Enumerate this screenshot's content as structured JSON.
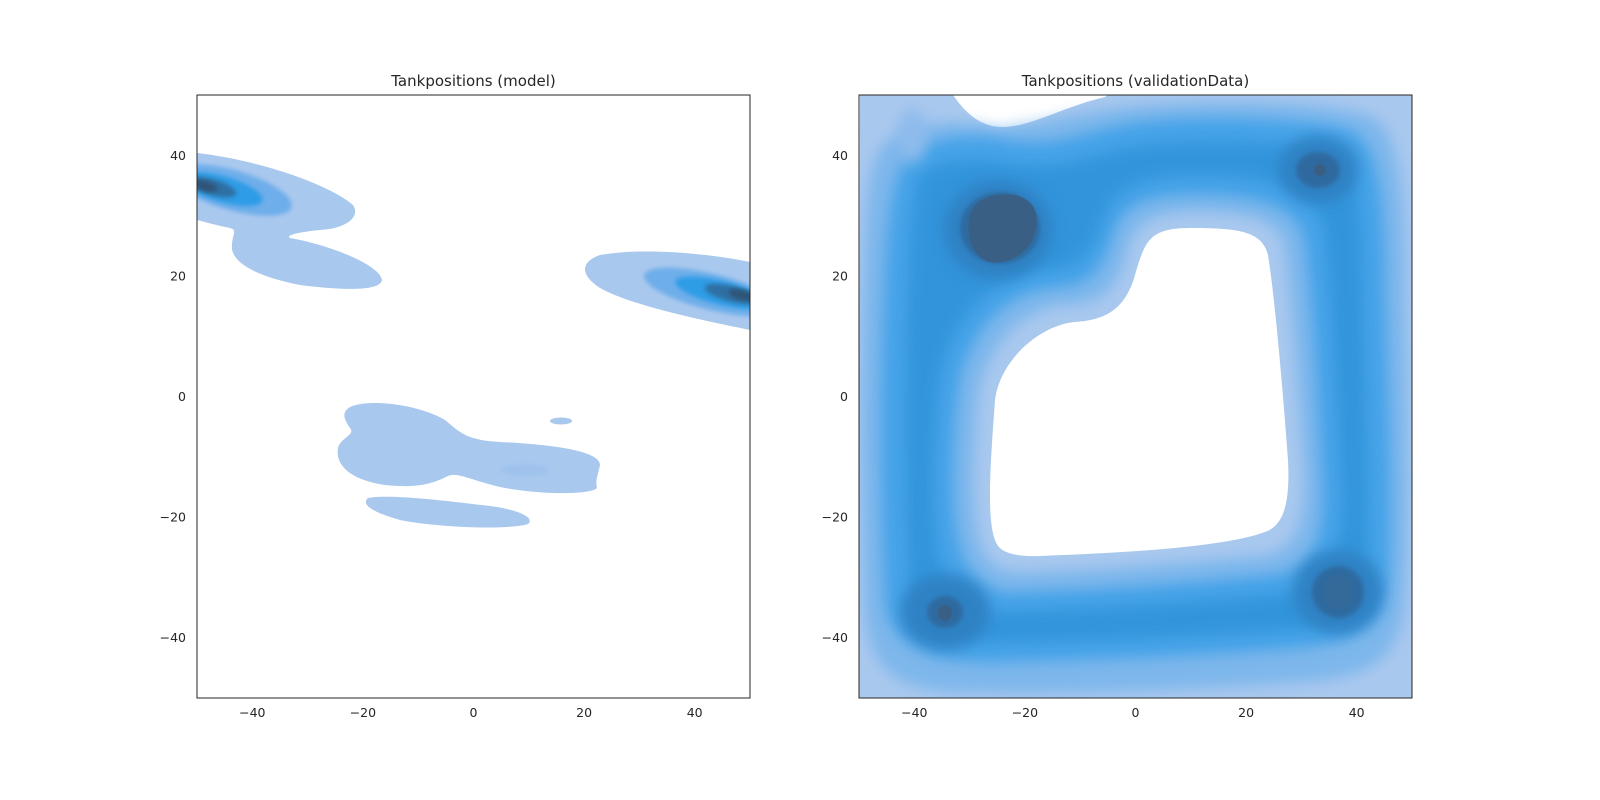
{
  "chart_data": [
    {
      "type": "kde-density-contour",
      "title": "Tankpositions (model)",
      "xlim": [
        -50,
        50
      ],
      "ylim": [
        -50,
        50
      ],
      "xticks": [
        -40,
        -20,
        0,
        20,
        40
      ],
      "yticks": [
        -40,
        -20,
        0,
        20,
        40
      ],
      "xlabel": "",
      "ylabel": "",
      "grid": false,
      "cmap": [
        "#a9c8ee",
        "#2b9be8",
        "#2d5478"
      ],
      "density_regions": [
        {
          "cx": -42,
          "cy": 34,
          "peak": 1.0
        },
        {
          "cx": -28,
          "cy": 22,
          "peak": 0.2
        },
        {
          "cx": 43,
          "cy": 17,
          "peak": 1.0
        },
        {
          "cx": -9,
          "cy": -7,
          "peak": 0.15
        },
        {
          "cx": 10,
          "cy": -13,
          "peak": 0.2
        },
        {
          "cx": 16,
          "cy": -4,
          "peak": 0.1
        },
        {
          "cx": -11,
          "cy": -19,
          "peak": 0.15
        }
      ]
    },
    {
      "type": "kde-density-contour",
      "title": "Tankpositions (validationData)",
      "xlim": [
        -50,
        50
      ],
      "ylim": [
        -50,
        50
      ],
      "xticks": [
        -40,
        -20,
        0,
        20,
        40
      ],
      "yticks": [
        -40,
        -20,
        0,
        20,
        40
      ],
      "xlabel": "",
      "ylabel": "",
      "grid": false,
      "cmap": [
        "#a9c8ee",
        "#2b9be8",
        "#2d5478"
      ],
      "density_regions": [
        {
          "cx": -24,
          "cy": 28,
          "peak": 1.0
        },
        {
          "cx": 33,
          "cy": 37,
          "peak": 0.85
        },
        {
          "cx": -34,
          "cy": -36,
          "peak": 0.8
        },
        {
          "cx": 37,
          "cy": -32,
          "peak": 0.85
        },
        {
          "cx": -40,
          "cy": 0,
          "peak": 0.6
        },
        {
          "cx": 40,
          "cy": 0,
          "peak": 0.6
        },
        {
          "cx": 0,
          "cy": -42,
          "peak": 0.6
        },
        {
          "cx": 5,
          "cy": 38,
          "peak": 0.55
        },
        {
          "cx": -45,
          "cy": 43,
          "peak": 0.3
        }
      ],
      "empty_region": {
        "x_range": [
          -25,
          27
        ],
        "y_range": [
          -27,
          28
        ]
      }
    }
  ]
}
